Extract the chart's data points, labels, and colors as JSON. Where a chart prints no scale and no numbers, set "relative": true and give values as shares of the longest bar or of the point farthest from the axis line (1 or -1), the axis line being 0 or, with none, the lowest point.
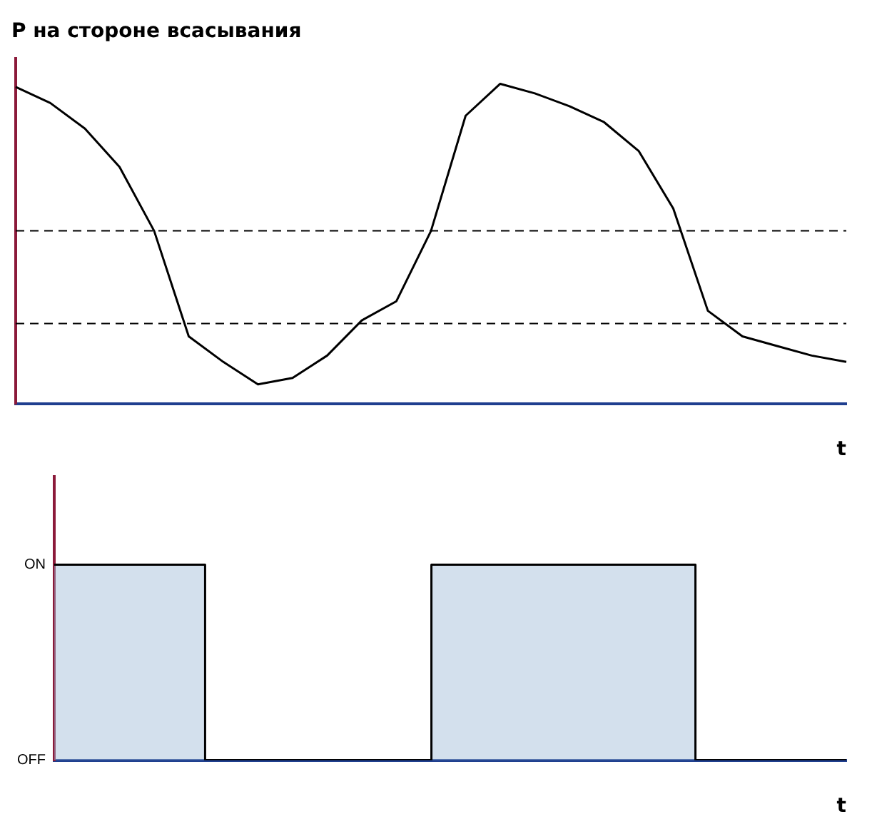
{
  "chart_data": [
    {
      "type": "line",
      "title": "P на стороне всасывания",
      "xlabel": "t",
      "relative": true,
      "grid": false,
      "legend": false,
      "marker": "none",
      "line_style": "solid",
      "categories": [
        null,
        null,
        null,
        null,
        null,
        null,
        null,
        null,
        null,
        null,
        null,
        null,
        null,
        null,
        null,
        null,
        null,
        null,
        null,
        null,
        null,
        null,
        null,
        null,
        null
      ],
      "series": [
        {
          "color": "#000000",
          "values": [
            0.99,
            0.94,
            0.86,
            0.74,
            0.54,
            0.21,
            0.13,
            0.06,
            0.08,
            0.15,
            0.26,
            0.32,
            0.54,
            0.9,
            1,
            0.97,
            0.93,
            0.88,
            0.79,
            0.61,
            0.29,
            0.21,
            0.18,
            0.15,
            0.13
          ]
        }
      ],
      "ref_lines": [
        {
          "axis": "y",
          "value": 0.54,
          "color": "#000000",
          "line_style": "dashed"
        },
        {
          "axis": "y",
          "value": 0.25,
          "color": "#000000",
          "line_style": "dashed"
        }
      ]
    },
    {
      "type": "step",
      "xlabel": "t",
      "grid": false,
      "legend": false,
      "marker": "none",
      "line_style": "solid",
      "categories": [
        null,
        null,
        null,
        null,
        null,
        null,
        null,
        null,
        null,
        null,
        null,
        null,
        null,
        null,
        null,
        null,
        null,
        null,
        null,
        null,
        null,
        null
      ],
      "relative": true,
      "annotations": [
        "ON",
        "OFF"
      ],
      "series": [
        {
          "color": "#000000",
          "values": [
            1,
            1,
            1,
            1,
            0,
            0,
            0,
            0,
            0,
            0,
            1,
            1,
            1,
            1,
            1,
            1,
            1,
            0,
            0,
            0,
            0,
            0
          ]
        }
      ]
    }
  ]
}
